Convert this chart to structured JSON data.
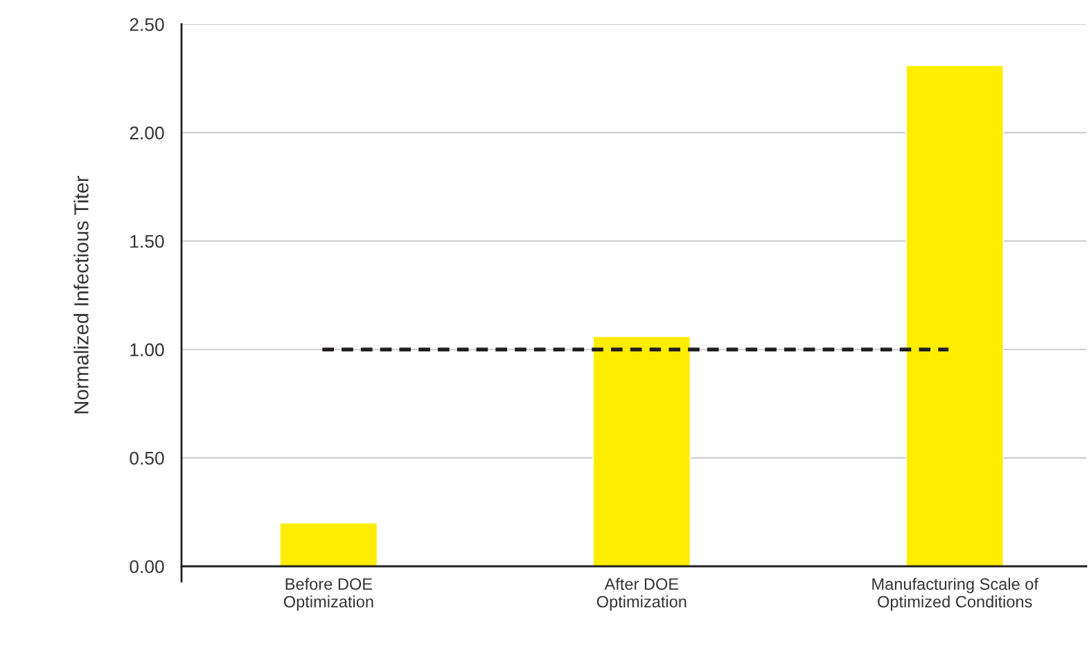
{
  "chart_data": {
    "type": "bar",
    "ylabel": "Normalized Infectious Titer",
    "categories": [
      "Before DOE\nOptimization",
      "After DOE\nOptimization",
      "Manufacturing Scale of\nOptimized Conditions"
    ],
    "values": [
      0.2,
      1.06,
      2.31
    ],
    "color": "#ffed00",
    "ylim": [
      0,
      2.5
    ],
    "yticks": [
      {
        "value": 0,
        "label": "0.00"
      },
      {
        "value": 0.5,
        "label": "0.50"
      },
      {
        "value": 1.0,
        "label": "1.00"
      },
      {
        "value": 1.5,
        "label": "1.50"
      },
      {
        "value": 2.0,
        "label": "2.00"
      },
      {
        "value": 2.5,
        "label": "2.50"
      }
    ],
    "grid": "y",
    "ref_lines": [
      {
        "axis": "y",
        "value": 1.0,
        "color": "#231f20",
        "line_style": "dashed"
      }
    ]
  }
}
